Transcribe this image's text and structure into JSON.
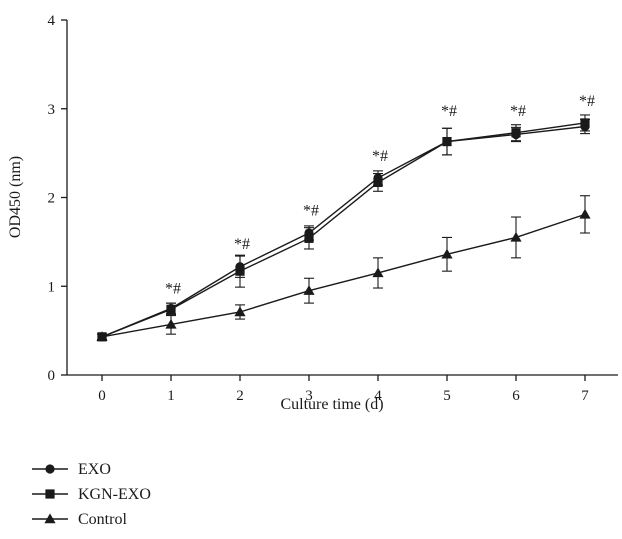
{
  "chart_data": {
    "type": "line",
    "x": [
      0,
      1,
      2,
      3,
      4,
      5,
      6,
      7
    ],
    "xlabel": "Culture time (d)",
    "ylabel": "OD450 (nm)",
    "xlim": [
      0,
      7
    ],
    "ylim": [
      0,
      4
    ],
    "xticks": [
      "0",
      "1",
      "2",
      "3",
      "4",
      "5",
      "6",
      "7"
    ],
    "yticks": [
      "0",
      "1",
      "2",
      "3",
      "4"
    ],
    "grid": false,
    "legend_position": "bottom-left",
    "series": [
      {
        "name": "EXO",
        "marker": "circle",
        "values": [
          0.43,
          0.75,
          1.22,
          1.6,
          2.22,
          2.63,
          2.71,
          2.8
        ],
        "errors": [
          0.03,
          0.06,
          0.12,
          0.08,
          0.08,
          0.15,
          0.08,
          0.08
        ]
      },
      {
        "name": "KGN-EXO",
        "marker": "square",
        "values": [
          0.43,
          0.74,
          1.17,
          1.54,
          2.17,
          2.63,
          2.73,
          2.84
        ],
        "errors": [
          0.03,
          0.07,
          0.18,
          0.12,
          0.1,
          0.15,
          0.09,
          0.09
        ]
      },
      {
        "name": "Control",
        "marker": "triangle",
        "values": [
          0.43,
          0.57,
          0.71,
          0.95,
          1.15,
          1.36,
          1.55,
          1.81
        ],
        "errors": [
          0.03,
          0.11,
          0.08,
          0.14,
          0.17,
          0.19,
          0.23,
          0.21
        ]
      }
    ],
    "annotations": [
      {
        "x": 1,
        "y": 0.92,
        "text": "*#"
      },
      {
        "x": 2,
        "y": 1.42,
        "text": "*#"
      },
      {
        "x": 3,
        "y": 1.8,
        "text": "*#"
      },
      {
        "x": 4,
        "y": 2.41,
        "text": "*#"
      },
      {
        "x": 5,
        "y": 2.92,
        "text": "*#"
      },
      {
        "x": 6,
        "y": 2.92,
        "text": "*#"
      },
      {
        "x": 7,
        "y": 3.03,
        "text": "*#"
      }
    ]
  }
}
